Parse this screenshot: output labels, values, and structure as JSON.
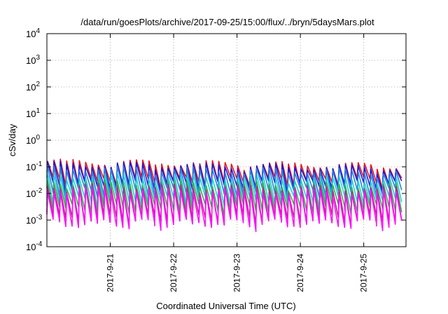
{
  "chart_data": {
    "type": "line",
    "title": "/data/run/goesPlots/archive/2017-09-25/15:00/flux/../bryn/5daysMars.plot",
    "xlabel": "Coordinated Universal Time (UTC)",
    "ylabel": "cSv/day",
    "x_range": [
      "2017-09-20 00:00",
      "2017-09-25 16:00"
    ],
    "y_range": [
      0.0001,
      10000
    ],
    "y_scale": "log",
    "grid": true,
    "legend": "none",
    "x_ticks": [
      "2017-9-21",
      "2017-9-22",
      "2017-9-23",
      "2017-9-24",
      "2017-9-25"
    ],
    "y_ticks": [
      {
        "base": "10",
        "exp": "4"
      },
      {
        "base": "10",
        "exp": "3"
      },
      {
        "base": "10",
        "exp": "2"
      },
      {
        "base": "10",
        "exp": "1"
      },
      {
        "base": "10",
        "exp": "0"
      },
      {
        "base": "10",
        "exp": "-1"
      },
      {
        "base": "10",
        "exp": "-2"
      },
      {
        "base": "10",
        "exp": "-3"
      },
      {
        "base": "10",
        "exp": "-4"
      }
    ],
    "sawtooth": {
      "period_hours": 2.4,
      "cycle_count": 56,
      "note": "each series rises sharply at the start of a cycle and decays until the next"
    },
    "series": [
      {
        "color": "#e8121f",
        "peak": 0.16,
        "trough": 0.03,
        "end_peak": 0.11
      },
      {
        "color": "#1a1ad6",
        "peak": 0.13,
        "trough": 0.022,
        "end_peak": 0.09
      },
      {
        "color": "#2b7fe0",
        "peak": 0.09,
        "trough": 0.012,
        "end_peak": 0.065
      },
      {
        "color": "#1fd0d0",
        "peak": 0.05,
        "trough": 0.006,
        "end_peak": 0.035
      },
      {
        "color": "#2fb34a",
        "peak": 0.028,
        "trough": 0.003,
        "end_peak": 0.02
      },
      {
        "color": "#d0149e",
        "peak": 0.02,
        "trough": 0.0012,
        "end_peak": 0.015
      },
      {
        "color": "#ff10ff",
        "peak": 0.014,
        "trough": 0.0008,
        "end_peak": 0.011
      }
    ]
  }
}
